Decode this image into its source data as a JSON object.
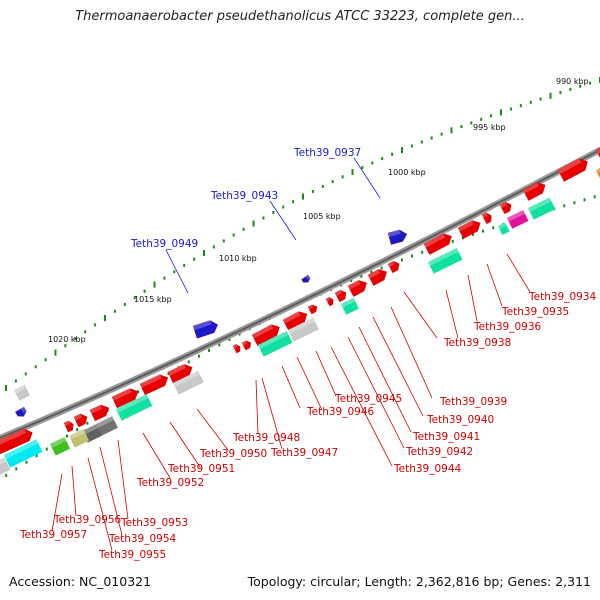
{
  "title": "Thermoanaerobacter pseudethanolicus ATCC 33223, complete gen...",
  "footer": {
    "accession": "Accession: NC_010321",
    "topology": "Topology: circular; Length: 2,362,816 bp; Genes: 2,311"
  },
  "ticks": [
    "990 kbp",
    "995 kbp",
    "1000 kbp",
    "1005 kbp",
    "1010 kbp",
    "1015 kbp",
    "1020 kbp"
  ],
  "colors": {
    "forward_gene": "#e60000",
    "reverse_gene": "#e60000",
    "backbone": "#888888",
    "minor_tick": "#1a8a1a",
    "label_red": "#cc0000",
    "label_blue": "#1a1acc",
    "rna": "#1a1acc"
  },
  "labels_top": [
    "Teth39_0937",
    "Teth39_0943",
    "Teth39_0949"
  ],
  "labels_bottom": [
    "Teth39_0934",
    "Teth39_0935",
    "Teth39_0936",
    "Teth39_0938",
    "Teth39_0939",
    "Teth39_0940",
    "Teth39_0941",
    "Teth39_0942",
    "Teth39_0944",
    "Teth39_0945",
    "Teth39_0946",
    "Teth39_0947",
    "Teth39_0948",
    "Teth39_0950",
    "Teth39_0951",
    "Teth39_0952",
    "Teth39_0953",
    "Teth39_0954",
    "Teth39_0955",
    "Teth39_0956",
    "Teth39_0957"
  ]
}
